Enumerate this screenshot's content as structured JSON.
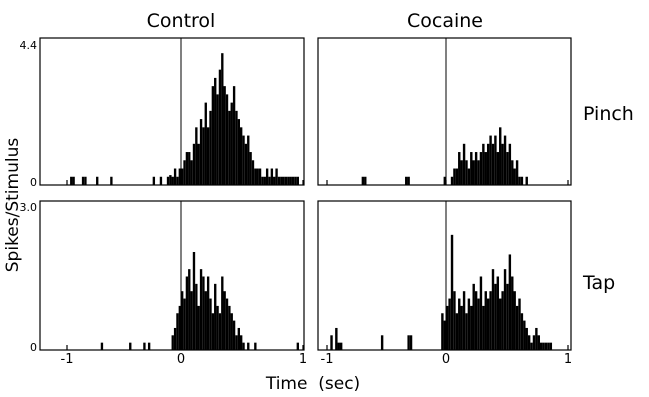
{
  "chart_data": [
    {
      "type": "bar",
      "panel": "control-pinch",
      "title": "Control",
      "row_label": "",
      "ytick_labels": [
        "4.4",
        "0"
      ],
      "ylim": [
        0,
        4.4
      ],
      "xlim": [
        -1.1,
        1.0
      ],
      "bin_width": 0.02,
      "x": [
        -0.94,
        -0.92,
        -0.84,
        -0.82,
        -0.72,
        -0.6,
        -0.24,
        -0.18,
        -0.12,
        -0.1,
        -0.08,
        -0.06,
        -0.04,
        -0.02,
        0.0,
        0.02,
        0.04,
        0.06,
        0.08,
        0.1,
        0.12,
        0.14,
        0.16,
        0.18,
        0.2,
        0.22,
        0.24,
        0.26,
        0.28,
        0.3,
        0.32,
        0.34,
        0.36,
        0.38,
        0.4,
        0.42,
        0.44,
        0.46,
        0.48,
        0.5,
        0.52,
        0.54,
        0.56,
        0.58,
        0.6,
        0.62,
        0.64,
        0.66,
        0.68,
        0.7,
        0.72,
        0.74,
        0.76,
        0.78,
        0.8,
        0.82,
        0.84,
        0.86,
        0.88,
        0.9,
        0.92,
        0.94,
        0.96,
        0.98
      ],
      "values": [
        0.25,
        0.25,
        0.25,
        0.25,
        0.25,
        0.25,
        0.25,
        0.25,
        0.25,
        0.3,
        0.25,
        0.5,
        0.25,
        0.5,
        0.5,
        0.75,
        1.0,
        1.0,
        0.75,
        1.25,
        1.75,
        1.25,
        2.0,
        1.75,
        2.5,
        1.75,
        2.25,
        3.0,
        3.25,
        2.75,
        3.5,
        4.0,
        3.0,
        2.75,
        2.25,
        2.5,
        3.0,
        2.25,
        2.0,
        1.75,
        1.5,
        1.25,
        1.5,
        1.0,
        0.75,
        0.5,
        0.5,
        0.5,
        0.25,
        0.25,
        0.5,
        0.25,
        0.5,
        0.25,
        0.5,
        0.25,
        0.25,
        0.25,
        0.25,
        0.25,
        0.25,
        0.25,
        0.25,
        0.25
      ]
    },
    {
      "type": "bar",
      "panel": "cocaine-pinch",
      "title": "Cocaine",
      "row_label": "Pinch",
      "ytick_labels": [],
      "ylim": [
        0,
        4.4
      ],
      "xlim": [
        -1.0,
        1.0
      ],
      "bin_width": 0.02,
      "x": [
        -0.7,
        -0.68,
        -0.34,
        -0.32,
        -0.02,
        0.04,
        0.06,
        0.08,
        0.1,
        0.12,
        0.14,
        0.16,
        0.18,
        0.2,
        0.22,
        0.24,
        0.26,
        0.28,
        0.3,
        0.32,
        0.34,
        0.36,
        0.38,
        0.4,
        0.42,
        0.44,
        0.46,
        0.48,
        0.5,
        0.52,
        0.54,
        0.56,
        0.58,
        0.6,
        0.62,
        0.66
      ],
      "values": [
        0.25,
        0.25,
        0.25,
        0.25,
        0.25,
        0.25,
        0.5,
        0.5,
        1.0,
        0.75,
        1.25,
        0.75,
        0.5,
        1.0,
        0.75,
        1.0,
        0.75,
        1.0,
        1.25,
        1.0,
        1.25,
        1.5,
        1.25,
        1.5,
        1.0,
        1.75,
        1.25,
        1.5,
        1.0,
        1.25,
        0.75,
        0.5,
        0.75,
        0.25,
        0.25,
        0.25
      ]
    },
    {
      "type": "bar",
      "panel": "control-tap",
      "title": "",
      "row_label": "",
      "ytick_labels": [
        "3.0",
        "0"
      ],
      "ylim": [
        0,
        3.0
      ],
      "xlim": [
        -1.1,
        1.0
      ],
      "bin_width": 0.02,
      "x": [
        -0.68,
        -0.44,
        -0.32,
        -0.28,
        -0.08,
        -0.06,
        -0.04,
        -0.02,
        0.0,
        0.02,
        0.04,
        0.06,
        0.08,
        0.1,
        0.12,
        0.14,
        0.16,
        0.18,
        0.2,
        0.22,
        0.24,
        0.26,
        0.28,
        0.3,
        0.32,
        0.34,
        0.36,
        0.38,
        0.4,
        0.42,
        0.44,
        0.46,
        0.48,
        0.5,
        0.52,
        0.56,
        0.62,
        0.98
      ],
      "values": [
        0.15,
        0.15,
        0.15,
        0.15,
        0.3,
        0.45,
        0.75,
        0.9,
        1.2,
        1.05,
        1.5,
        1.65,
        1.2,
        2.0,
        1.35,
        0.9,
        1.65,
        1.5,
        1.2,
        1.5,
        1.05,
        0.75,
        1.35,
        0.9,
        0.75,
        1.5,
        1.2,
        1.05,
        0.9,
        0.75,
        0.6,
        0.3,
        0.45,
        0.3,
        0.15,
        0.15,
        0.15,
        0.15
      ]
    },
    {
      "type": "bar",
      "panel": "cocaine-tap",
      "title": "",
      "row_label": "Tap",
      "ytick_labels": [],
      "ylim": [
        0,
        3.0
      ],
      "xlim": [
        -1.0,
        1.0
      ],
      "bin_width": 0.02,
      "x": [
        -0.96,
        -0.92,
        -0.9,
        -0.88,
        -0.54,
        -0.32,
        -0.3,
        -0.04,
        -0.02,
        0.0,
        0.02,
        0.04,
        0.06,
        0.08,
        0.1,
        0.12,
        0.14,
        0.16,
        0.18,
        0.2,
        0.22,
        0.24,
        0.26,
        0.28,
        0.3,
        0.32,
        0.34,
        0.36,
        0.38,
        0.4,
        0.42,
        0.44,
        0.46,
        0.48,
        0.5,
        0.52,
        0.54,
        0.56,
        0.58,
        0.6,
        0.62,
        0.64,
        0.66,
        0.68,
        0.7,
        0.72,
        0.74,
        0.76,
        0.78,
        0.8,
        0.82,
        0.84,
        0.86
      ],
      "values": [
        0.3,
        0.45,
        0.15,
        0.15,
        0.3,
        0.3,
        0.3,
        0.75,
        0.6,
        0.9,
        1.05,
        2.35,
        1.2,
        0.75,
        1.05,
        0.9,
        1.2,
        0.75,
        1.05,
        0.9,
        1.35,
        1.2,
        1.05,
        1.5,
        0.9,
        1.2,
        1.05,
        1.2,
        1.65,
        1.35,
        1.5,
        1.05,
        1.2,
        1.65,
        1.35,
        1.95,
        1.5,
        1.2,
        0.9,
        1.05,
        0.75,
        0.6,
        0.45,
        0.3,
        0.15,
        0.3,
        0.45,
        0.3,
        0.15,
        0.15,
        0.15,
        0.15,
        0.15
      ]
    }
  ],
  "xticks_left": [
    "-1",
    "0",
    "1"
  ],
  "xticks_right": [
    "-1",
    "0",
    "1"
  ],
  "xlabel": "Time  (sec)",
  "ylabel": "Spikes/Stimulus"
}
